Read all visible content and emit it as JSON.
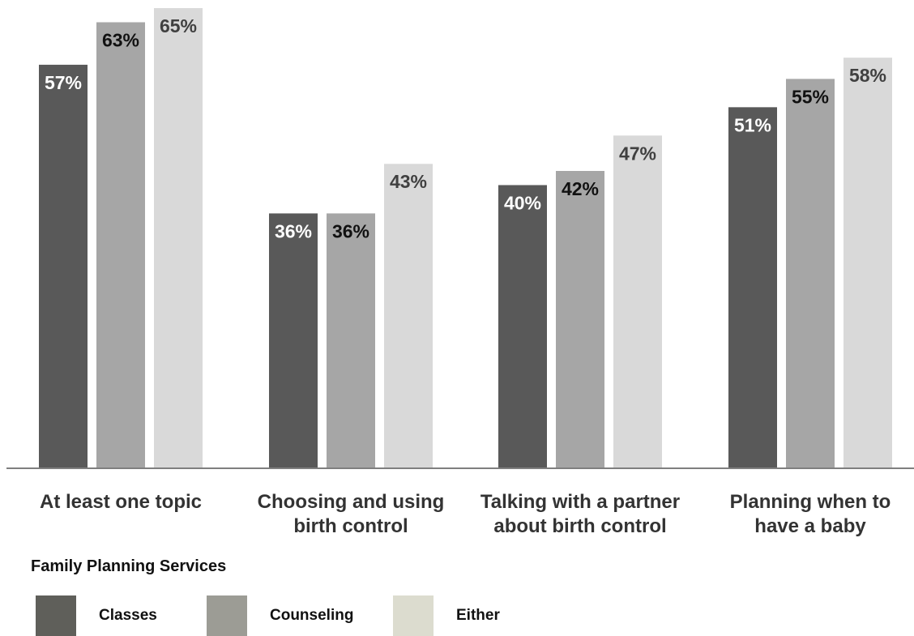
{
  "chart_data": {
    "type": "bar",
    "categories": [
      [
        "At least one topic"
      ],
      [
        "Choosing and using",
        "birth control"
      ],
      [
        "Talking with a partner",
        "about birth control"
      ],
      [
        "Planning when to",
        "have a baby"
      ]
    ],
    "series": [
      {
        "name": "Classes",
        "values": [
          57,
          36,
          40,
          51
        ],
        "color": "#595959",
        "label_color": "#ffffff"
      },
      {
        "name": "Counseling",
        "values": [
          63,
          36,
          42,
          55
        ],
        "color": "#a6a6a6",
        "label_color": "#111111"
      },
      {
        "name": "Either",
        "values": [
          65,
          43,
          47,
          58
        ],
        "color": "#d9d9d9",
        "label_color": "#404040"
      }
    ],
    "value_suffix": "%",
    "ylim": [
      0,
      100
    ],
    "legend_title": "Family Planning Services",
    "legend_position": "bottom-left",
    "grid": false
  },
  "legend": {
    "title": "Family Planning Services",
    "items": [
      {
        "label": "Classes",
        "color": "#5f5f5a"
      },
      {
        "label": "Counseling",
        "color": "#9c9c95"
      },
      {
        "label": "Either",
        "color": "#dcdccf"
      }
    ]
  }
}
